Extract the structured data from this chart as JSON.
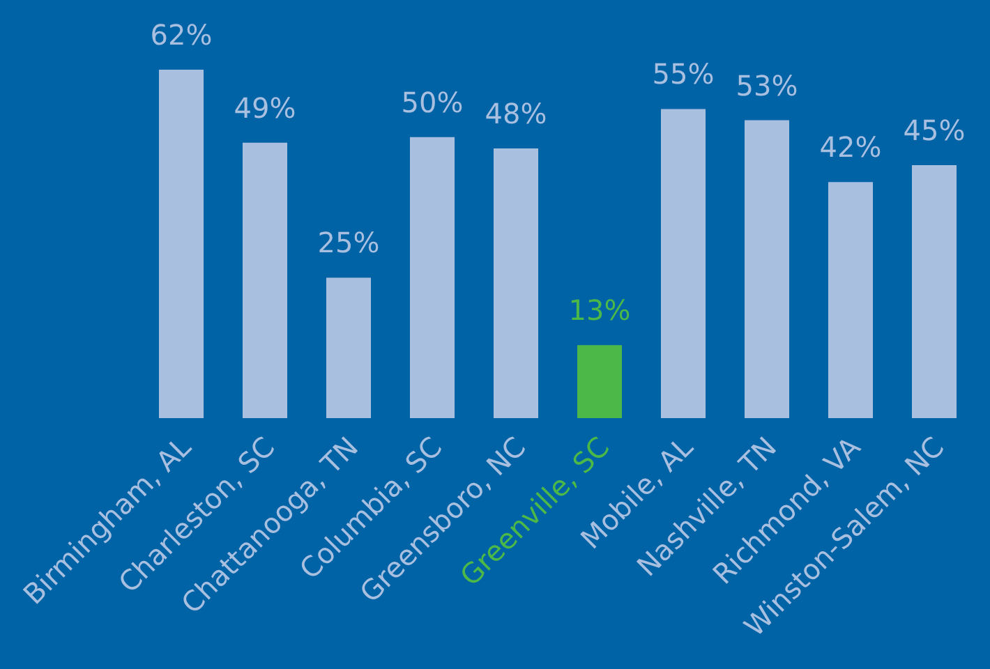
{
  "chart_data": {
    "type": "bar",
    "categories": [
      "Birmingham, AL",
      "Charleston, SC",
      "Chattanooga, TN",
      "Columbia, SC",
      "Greensboro, NC",
      "Greenville, SC",
      "Mobile, AL",
      "Nashville, TN",
      "Richmond, VA",
      "Winston-Salem, NC"
    ],
    "values": [
      62,
      49,
      25,
      50,
      48,
      13,
      55,
      53,
      42,
      45
    ],
    "colors": [
      "#a9bfe0",
      "#a9bfe0",
      "#a9bfe0",
      "#a9bfe0",
      "#a9bfe0",
      "#4cb848",
      "#a9bfe0",
      "#a9bfe0",
      "#a9bfe0",
      "#a9bfe0"
    ],
    "value_labels": [
      "62%",
      "49%",
      "25%",
      "50%",
      "48%",
      "13%",
      "55%",
      "53%",
      "42%",
      "45%"
    ]
  }
}
